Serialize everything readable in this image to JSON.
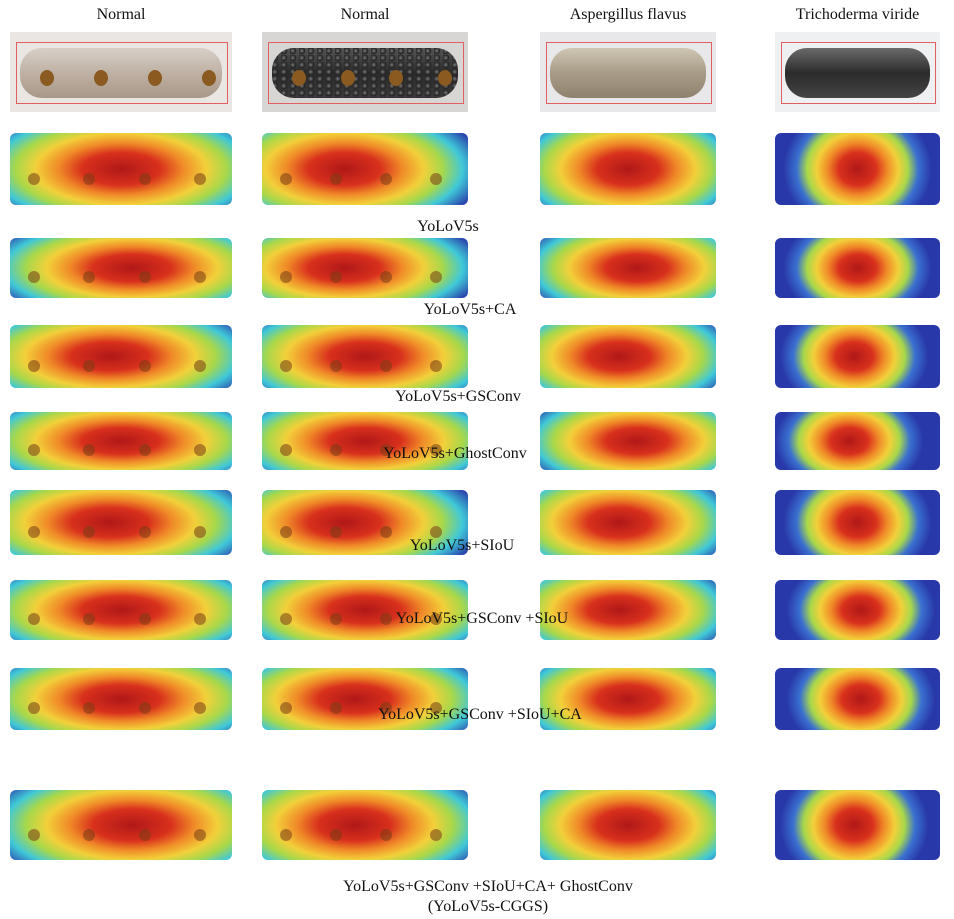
{
  "headers": [
    "Normal",
    "Normal",
    "Aspergillus flavus",
    "Trichoderma viride"
  ],
  "rows": [
    {
      "label": "YoLoV5s"
    },
    {
      "label": "YoLoV5s+CA"
    },
    {
      "label": "YoLoV5s+GSConv"
    },
    {
      "label": "YoLoV5s+GhostConv"
    },
    {
      "label": "YoLoV5s+SIoU"
    },
    {
      "label": "YoLoV5s+GSConv +SIoU"
    },
    {
      "label": "YoLoV5s+GSConv +SIoU+CA"
    },
    {
      "label": "YoLoV5s+GSConv +SIoU+CA+ GhostConv",
      "sublabel": "(YoLoV5s-CGGS)"
    }
  ]
}
